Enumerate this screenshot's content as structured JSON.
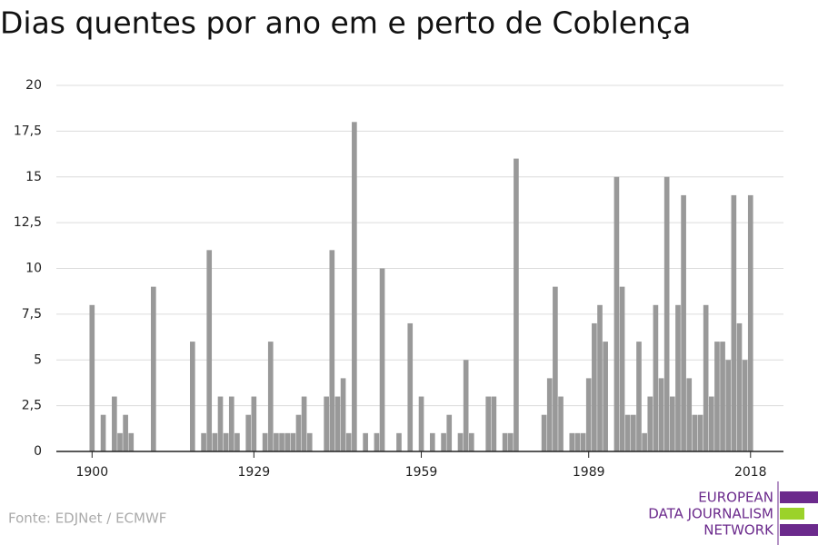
{
  "chart_data": {
    "type": "bar",
    "title": "Dias quentes por ano em e perto de Coblença",
    "source": "Fonte: EDJNet / ECMWF",
    "logo": [
      "EUROPEAN",
      "DATA JOURNALISM",
      "NETWORK"
    ],
    "color": "#999999",
    "grid": true,
    "x": [
      1900,
      1901,
      1902,
      1903,
      1904,
      1905,
      1906,
      1907,
      1908,
      1909,
      1910,
      1911,
      1912,
      1913,
      1914,
      1915,
      1916,
      1917,
      1918,
      1919,
      1920,
      1921,
      1922,
      1923,
      1924,
      1925,
      1926,
      1927,
      1928,
      1929,
      1930,
      1931,
      1932,
      1933,
      1934,
      1935,
      1936,
      1937,
      1938,
      1939,
      1940,
      1941,
      1942,
      1943,
      1944,
      1945,
      1946,
      1947,
      1948,
      1949,
      1950,
      1951,
      1952,
      1953,
      1954,
      1955,
      1956,
      1957,
      1958,
      1959,
      1960,
      1961,
      1962,
      1963,
      1964,
      1965,
      1966,
      1967,
      1968,
      1969,
      1970,
      1971,
      1972,
      1973,
      1974,
      1975,
      1976,
      1977,
      1978,
      1979,
      1980,
      1981,
      1982,
      1983,
      1984,
      1985,
      1986,
      1987,
      1988,
      1989,
      1990,
      1991,
      1992,
      1993,
      1994,
      1995,
      1996,
      1997,
      1998,
      1999,
      2000,
      2001,
      2002,
      2003,
      2004,
      2005,
      2006,
      2007,
      2008,
      2009,
      2010,
      2011,
      2012,
      2013,
      2014,
      2015,
      2016,
      2017,
      2018
    ],
    "values": [
      8,
      0,
      2,
      0,
      3,
      1,
      2,
      1,
      0,
      0,
      0,
      9,
      0,
      0,
      0,
      0,
      0,
      0,
      6,
      0,
      1,
      11,
      1,
      3,
      1,
      3,
      1,
      0,
      2,
      3,
      0,
      1,
      6,
      1,
      1,
      1,
      1,
      2,
      3,
      1,
      0,
      0,
      3,
      11,
      3,
      4,
      1,
      18,
      0,
      1,
      0,
      1,
      10,
      0,
      0,
      1,
      0,
      7,
      0,
      3,
      0,
      1,
      0,
      1,
      2,
      0,
      1,
      5,
      1,
      0,
      0,
      3,
      3,
      0,
      1,
      1,
      16,
      0,
      0,
      0,
      0,
      2,
      4,
      9,
      3,
      0,
      1,
      1,
      1,
      4,
      7,
      8,
      6,
      0,
      15,
      9,
      2,
      2,
      6,
      1,
      3,
      8,
      4,
      15,
      3,
      8,
      14,
      4,
      2,
      2,
      8,
      3,
      6,
      6,
      5,
      14,
      7,
      5,
      14
    ],
    "xlim": [
      1893.6,
      2023.9
    ],
    "xticks": [
      1900,
      1929,
      1959,
      1989,
      2018
    ],
    "ylim": [
      0,
      20
    ],
    "yticks": [
      0,
      {
        "value": 2.5,
        "label": "2,5"
      },
      5,
      {
        "value": 7.5,
        "label": "7,5"
      },
      10,
      {
        "value": 12.5,
        "label": "12,5"
      },
      15,
      {
        "value": 17.5,
        "label": "17,5"
      },
      20
    ]
  }
}
